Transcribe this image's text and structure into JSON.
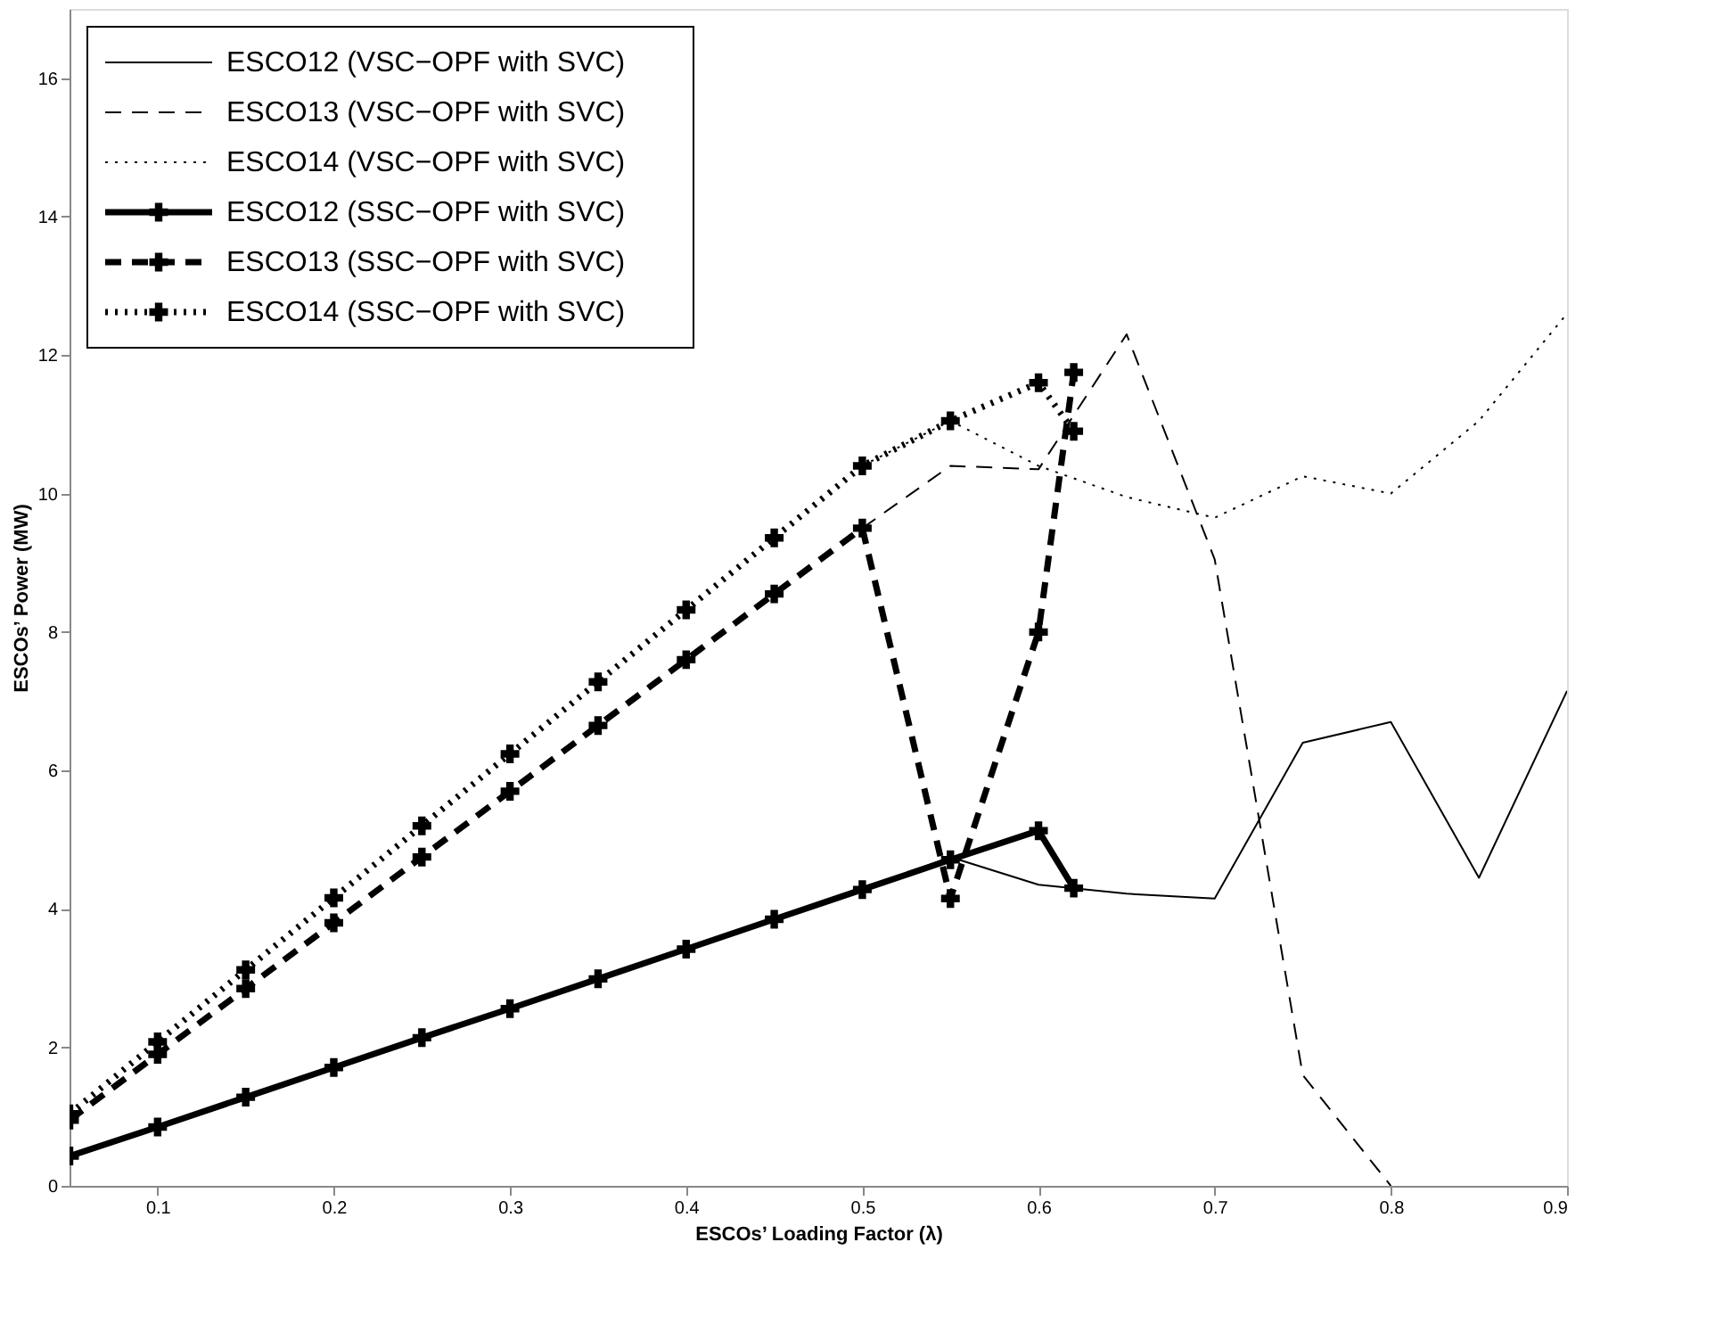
{
  "chart_data": {
    "type": "line",
    "xlabel": "ESCOs’ Loading Factor (λ)",
    "ylabel": "ESCOs’ Power (MW)",
    "xlim": [
      0.05,
      0.9
    ],
    "ylim": [
      0,
      17
    ],
    "xticks": [
      0.1,
      0.2,
      0.3,
      0.4,
      0.5,
      0.6,
      0.7,
      0.8,
      0.9
    ],
    "yticks": [
      0,
      2,
      4,
      6,
      8,
      10,
      12,
      14,
      16
    ],
    "grid": false,
    "legend": "top left",
    "series": [
      {
        "name": "ESCO12 (VSC−OPF with SVC)",
        "color": "#000000",
        "line_style": "solid",
        "marker": "none",
        "x": [
          0.5,
          0.55,
          0.6,
          0.65,
          0.7,
          0.75,
          0.8,
          0.85,
          0.9
        ],
        "values": [
          4.28,
          4.75,
          4.35,
          4.22,
          4.15,
          6.4,
          6.7,
          4.45,
          7.15
        ]
      },
      {
        "name": "ESCO13 (VSC−OPF with SVC)",
        "color": "#000000",
        "line_style": "dashed",
        "marker": "none",
        "x": [
          0.5,
          0.55,
          0.6,
          0.65,
          0.7,
          0.75,
          0.8
        ],
        "values": [
          9.5,
          10.4,
          10.35,
          12.3,
          9.05,
          1.6,
          0
        ]
      },
      {
        "name": "ESCO14 (VSC−OPF with SVC)",
        "color": "#000000",
        "line_style": "dotted",
        "marker": "none",
        "x": [
          0.5,
          0.55,
          0.6,
          0.65,
          0.7,
          0.75,
          0.8,
          0.85,
          0.9
        ],
        "values": [
          10.4,
          11.05,
          10.4,
          9.95,
          9.65,
          10.25,
          10.0,
          11.05,
          12.6
        ]
      },
      {
        "name": "ESCO12 (SSC−OPF with SVC)",
        "color": "#000000",
        "line_style": "solid",
        "marker": "cross",
        "x": [
          0.05,
          0.1,
          0.15,
          0.2,
          0.25,
          0.3,
          0.35,
          0.4,
          0.45,
          0.5,
          0.55,
          0.6,
          0.62
        ],
        "values": [
          0.43,
          0.85,
          1.28,
          1.71,
          2.14,
          2.56,
          2.99,
          3.42,
          3.85,
          4.28,
          4.71,
          5.13,
          4.3
        ]
      },
      {
        "name": "ESCO13 (SSC−OPF with SVC)",
        "color": "#000000",
        "line_style": "dashed",
        "marker": "cross",
        "x": [
          0.05,
          0.1,
          0.15,
          0.2,
          0.25,
          0.3,
          0.35,
          0.4,
          0.45,
          0.5,
          0.55,
          0.6,
          0.62
        ],
        "values": [
          0.95,
          1.9,
          2.85,
          3.8,
          4.75,
          5.7,
          6.65,
          7.6,
          8.55,
          9.5,
          4.15,
          8.0,
          11.75
        ]
      },
      {
        "name": "ESCO14 (SSC−OPF with SVC)",
        "color": "#000000",
        "line_style": "dotted",
        "marker": "cross",
        "x": [
          0.05,
          0.1,
          0.15,
          0.2,
          0.25,
          0.3,
          0.35,
          0.4,
          0.45,
          0.5,
          0.55,
          0.6,
          0.62
        ],
        "values": [
          1.04,
          2.08,
          3.12,
          4.16,
          5.2,
          6.24,
          7.28,
          8.32,
          9.36,
          10.4,
          11.05,
          11.6,
          10.9
        ]
      }
    ]
  }
}
